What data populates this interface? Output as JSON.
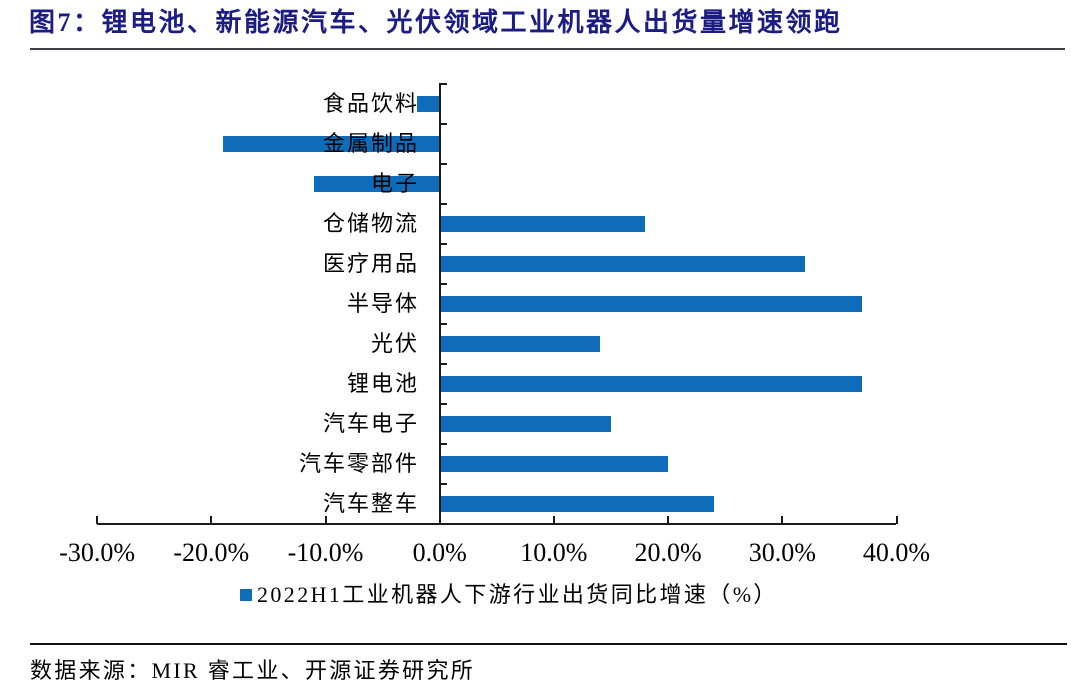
{
  "title": {
    "text": "图7：锂电池、新能源汽车、光伏领域工业机器人出货量增速领跑"
  },
  "chart_data": {
    "type": "bar",
    "orientation": "horizontal",
    "title": "图7：锂电池、新能源汽车、光伏领域工业机器人出货量增速领跑",
    "categories": [
      "食品饮料",
      "金属制品",
      "电子",
      "仓储物流",
      "医疗用品",
      "半导体",
      "光伏",
      "锂电池",
      "汽车电子",
      "汽车零部件",
      "汽车整车"
    ],
    "values": [
      -2,
      -19,
      -11,
      18,
      32,
      37,
      14,
      37,
      15,
      20,
      24
    ],
    "unit": "%",
    "series_name": "2022H1工业机器人下游行业出货同比增速（%）",
    "xlim": [
      -30,
      40
    ],
    "x_tick_step": 10,
    "x_tick_labels": [
      "-30.0%",
      "-20.0%",
      "-10.0%",
      "0.0%",
      "10.0%",
      "20.0%",
      "30.0%",
      "40.0%"
    ],
    "legend_position": "bottom",
    "grid": false
  },
  "legend": {
    "label": "2022H1工业机器人下游行业出货同比增速（%）"
  },
  "source": {
    "text": "数据来源：MIR 睿工业、开源证券研究所"
  },
  "colors": {
    "bar": "#0E6CBB",
    "title": "#1C1C85",
    "axis": "#1A1A1A",
    "title_rule": "#3D4049",
    "source_rule": "#101010",
    "text": "#000000"
  }
}
